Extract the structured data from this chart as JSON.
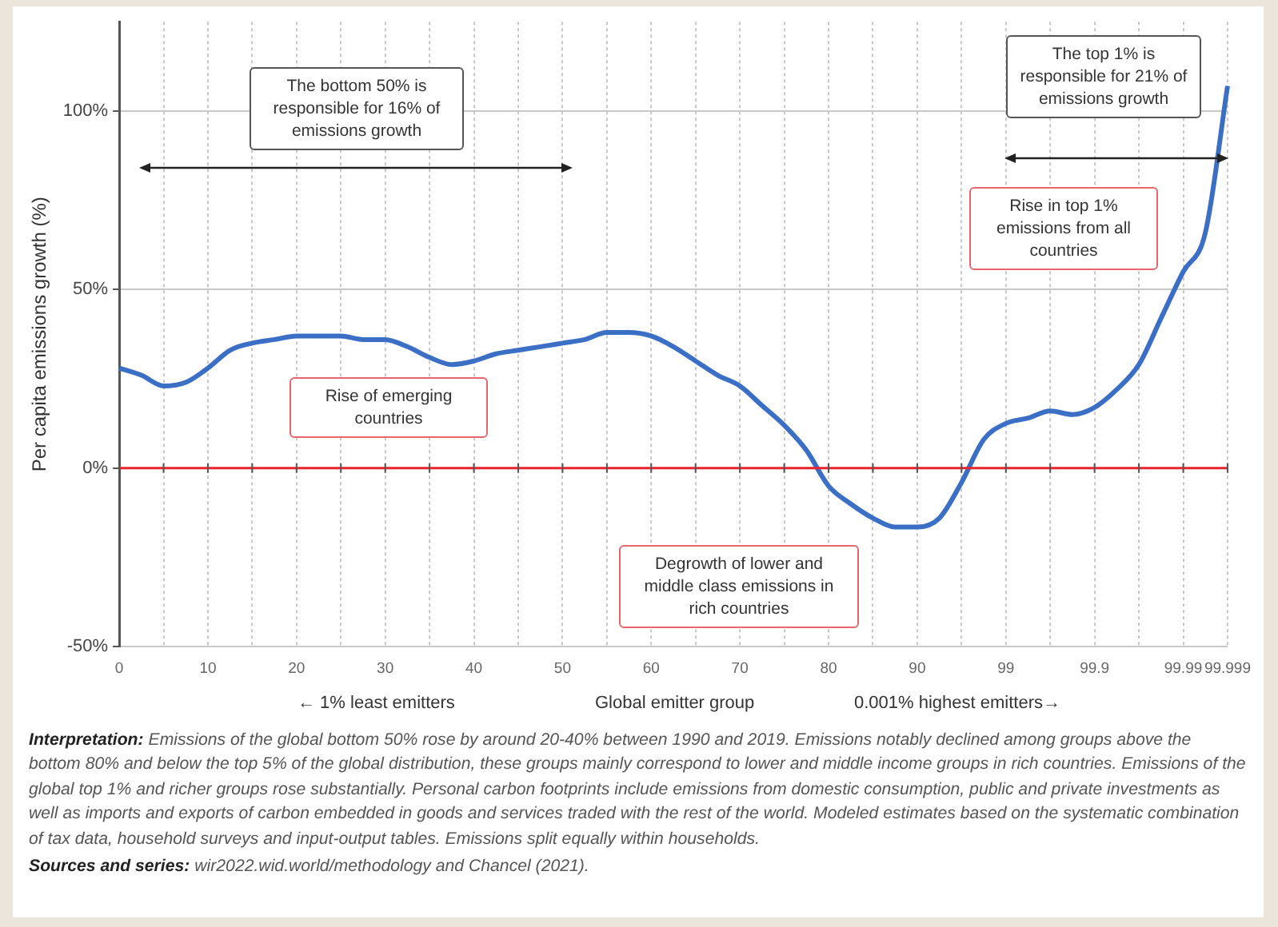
{
  "chart_data": {
    "type": "line",
    "ylabel": "Per capita emissions growth (%)",
    "xlabel": "Global emitter group",
    "categories": [
      "0",
      null,
      null,
      null,
      "10",
      null,
      null,
      null,
      "20",
      null,
      null,
      null,
      "30",
      null,
      null,
      null,
      "40",
      null,
      null,
      null,
      "50",
      null,
      null,
      null,
      "60",
      null,
      null,
      null,
      "70",
      null,
      null,
      null,
      "80",
      null,
      null,
      null,
      "90",
      null,
      null,
      null,
      "99",
      null,
      null,
      null,
      "99.9",
      null,
      null,
      null,
      "99.99",
      null,
      "99.999"
    ],
    "series": [
      {
        "color": "#3b6fc6",
        "values": [
          28,
          26,
          23,
          24,
          28,
          33,
          35,
          36,
          37,
          37,
          37,
          36,
          36,
          34,
          31,
          29,
          30,
          32,
          33,
          34,
          35,
          36,
          38,
          38,
          37,
          34,
          30,
          26,
          23,
          17.5,
          12,
          5,
          -5,
          -10,
          -14,
          -16.5,
          -16.5,
          -14,
          -4,
          8,
          12.5,
          14,
          16,
          15,
          17,
          22,
          29,
          42,
          55,
          66,
          107
        ]
      }
    ],
    "ylim": [
      -50,
      125
    ],
    "yticks": [
      {
        "value": -50,
        "label": "-50%"
      },
      {
        "value": 0,
        "label": "0%"
      },
      {
        "value": 50,
        "label": "50%"
      },
      {
        "value": 100,
        "label": "100%"
      }
    ],
    "grid": true,
    "legend": false,
    "marker": "none",
    "line_style": "solid",
    "ref_lines": [
      {
        "axis": "y",
        "value": 0,
        "color": "#e8232b"
      }
    ],
    "annotations": [
      "The bottom 50% is responsible for 16% of emissions growth",
      "Rise of emerging countries",
      "Degrowth of lower and middle class emissions in rich countries",
      "The top 1% is responsible for 21% of emissions growth",
      "Rise in top 1% emissions from all countries",
      "← 1% least emitters",
      "0.001% highest emitters→",
      "Interpretation: Emissions of the global bottom 50% rose by around 20-40% between 1990 and 2019. Emissions notably declined among groups above the bottom 80% and below the top 5% of the global distribution, these groups mainly correspond to lower and middle income groups in rich countries. Emissions of the global top 1% and richer groups rose substantially. Personal carbon footprints include emissions from domestic consumption, public and private investments as well as imports and exports of carbon embedded in goods and services traded with the rest of the world. Modeled estimates based on the systematic combination of tax data, household surveys and input-output tables. Emissions split equally within households.",
      "Sources and series: wir2022.wid.world/methodology and Chancel (2021)."
    ]
  }
}
